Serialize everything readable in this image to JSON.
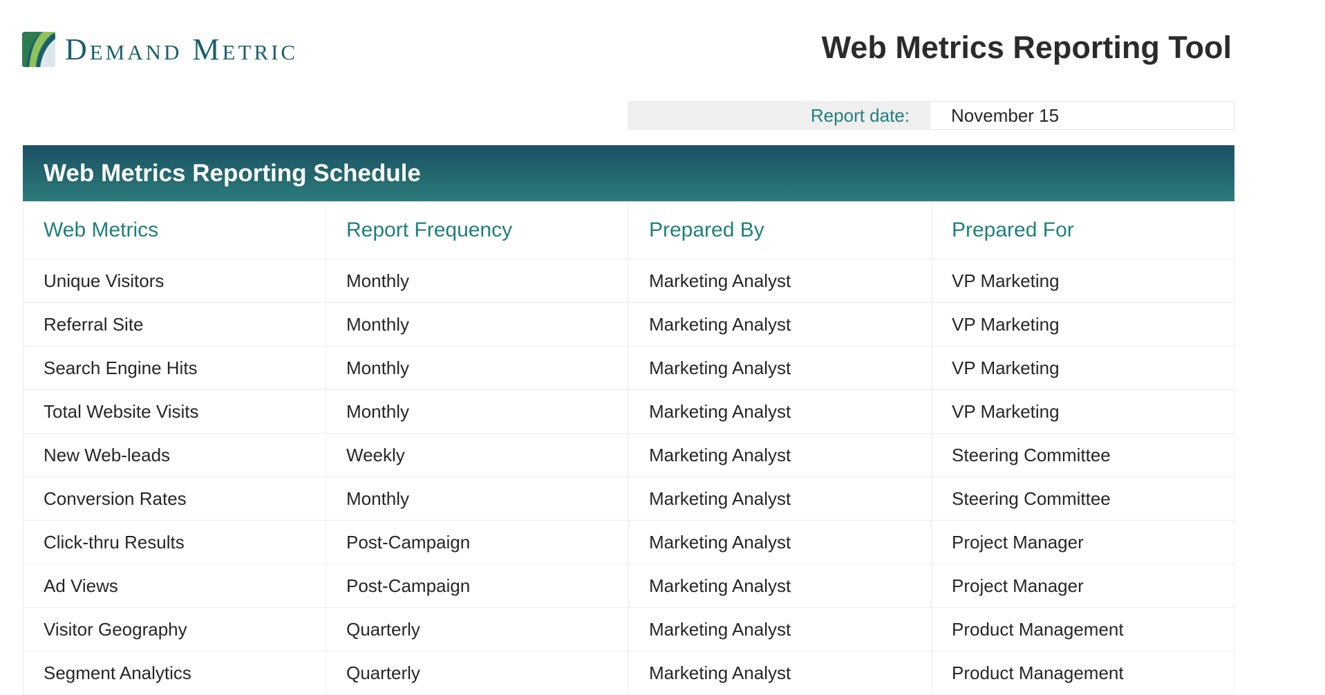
{
  "brand": {
    "name": "Demand Metric",
    "logo_colors": [
      "#2e7d4f",
      "#1a5f6b",
      "#8fc25b"
    ]
  },
  "page_title": "Web Metrics Reporting Tool",
  "report": {
    "date_label": "Report date:",
    "date_value": "November 15"
  },
  "schedule": {
    "header": "Web Metrics Reporting Schedule",
    "columns": [
      "Web Metrics",
      "Report Frequency",
      "Prepared By",
      "Prepared For"
    ],
    "rows": [
      [
        "Unique Visitors",
        "Monthly",
        "Marketing Analyst",
        "VP Marketing"
      ],
      [
        "Referral Site",
        "Monthly",
        "Marketing Analyst",
        "VP Marketing"
      ],
      [
        "Search Engine Hits",
        "Monthly",
        "Marketing Analyst",
        "VP Marketing"
      ],
      [
        "Total Website Visits",
        "Monthly",
        "Marketing Analyst",
        "VP Marketing"
      ],
      [
        "New Web-leads",
        "Weekly",
        "Marketing Analyst",
        "Steering Committee"
      ],
      [
        "Conversion Rates",
        "Monthly",
        "Marketing Analyst",
        "Steering Committee"
      ],
      [
        "Click-thru Results",
        "Post-Campaign",
        "Marketing Analyst",
        "Project Manager"
      ],
      [
        "Ad Views",
        "Post-Campaign",
        "Marketing Analyst",
        "Project Manager"
      ],
      [
        "Visitor Geography",
        "Quarterly",
        "Marketing Analyst",
        "Product Management"
      ],
      [
        "Segment Analytics",
        "Quarterly",
        "Marketing Analyst",
        "Product Management"
      ]
    ]
  }
}
